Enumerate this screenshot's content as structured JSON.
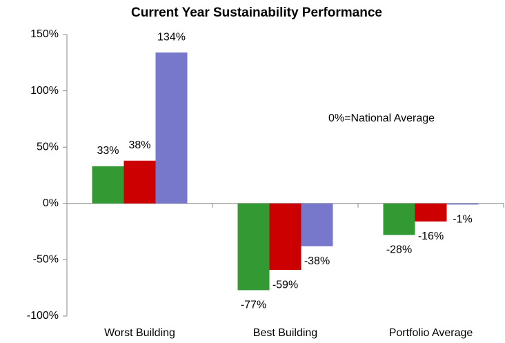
{
  "chart_data": {
    "type": "bar",
    "title": "Current Year Sustainability Performance",
    "annotation": "0%=National Average",
    "categories": [
      "Worst Building",
      "Best Building",
      "Portfolio Average"
    ],
    "series": [
      {
        "color": "#339933",
        "values": [
          33,
          -77,
          -28
        ],
        "value_labels": [
          "33%",
          "-77%",
          "-28%"
        ]
      },
      {
        "color": "#cc0000",
        "values": [
          38,
          -59,
          -16
        ],
        "value_labels": [
          "38%",
          "-59%",
          "-16%"
        ]
      },
      {
        "color": "#7777cc",
        "values": [
          134,
          -38,
          -1
        ],
        "value_labels": [
          "134%",
          "-38%",
          "-1%"
        ]
      }
    ],
    "ylim": [
      -100,
      150
    ],
    "yticks": [
      {
        "value": -100,
        "label": "-100%"
      },
      {
        "value": -50,
        "label": "-50%"
      },
      {
        "value": 0,
        "label": "0%"
      },
      {
        "value": 50,
        "label": "50%"
      },
      {
        "value": 100,
        "label": "100%"
      },
      {
        "value": 150,
        "label": "150%"
      }
    ],
    "grid": false
  }
}
